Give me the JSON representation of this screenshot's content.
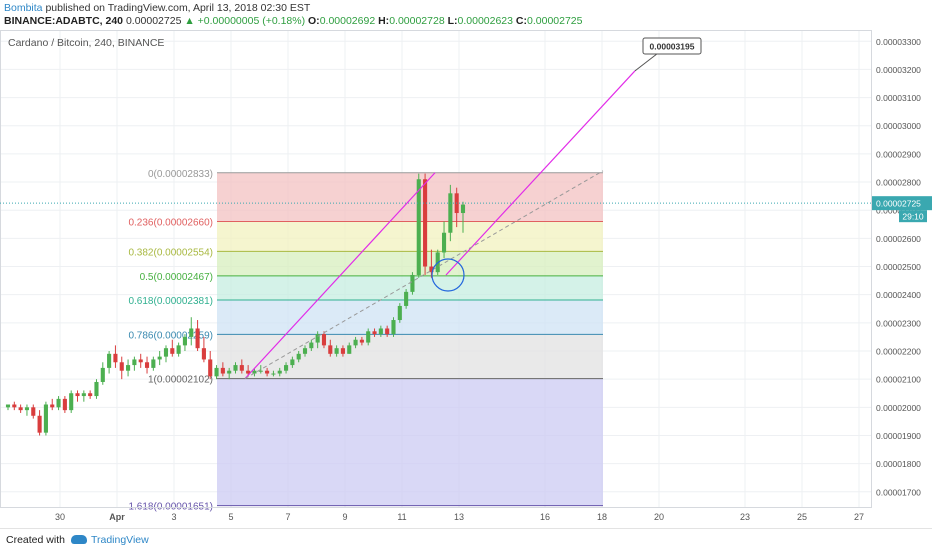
{
  "header": {
    "author": "Bombita",
    "published_text": "published on TradingView.com, April 13, 2018 02:30 EST",
    "symbol": "BINANCE:ADABTC, 240",
    "last": "0.00002725",
    "change_arrow": "▲",
    "change": "+0.00000005 (+0.18%)",
    "o_label": "O:",
    "o_value": "0.00002692",
    "h_label": "H:",
    "h_value": "0.00002728",
    "l_label": "L:",
    "l_value": "0.00002623",
    "c_label": "C:",
    "c_value": "0.00002725"
  },
  "footer": {
    "created_with": "Created with",
    "brand": "TradingView"
  },
  "colors": {
    "up": "#4caf50",
    "down": "#d93d3d",
    "trendline": "#e22ce8",
    "circle": "#2266dd",
    "price_axis_label": "#3aa8b0"
  },
  "chart_data": {
    "type": "candlestick",
    "title": "Cardano / Bitcoin, 240, BINANCE",
    "x_tick_labels": [
      "30",
      "Apr",
      "3",
      "5",
      "7",
      "9",
      "11",
      "13",
      "16",
      "18",
      "20",
      "23",
      "25",
      "27"
    ],
    "y_tick_labels": [
      "0.00003300",
      "0.00003200",
      "0.00003100",
      "0.00003000",
      "0.00002900",
      "0.00002800",
      "0.00002700",
      "0.00002600",
      "0.00002500",
      "0.00002400",
      "0.00002300",
      "0.00002200",
      "0.00002100",
      "0.00002000",
      "0.00001900",
      "0.00001800",
      "0.00001700"
    ],
    "y_ticks": [
      3.3e-05,
      3.2e-05,
      3.1e-05,
      3e-05,
      2.9e-05,
      2.8e-05,
      2.7e-05,
      2.6e-05,
      2.5e-05,
      2.4e-05,
      2.3e-05,
      2.2e-05,
      2.1e-05,
      2e-05,
      1.9e-05,
      1.8e-05,
      1.7e-05
    ],
    "ylim": [
      1.646e-05,
      3.34e-05
    ],
    "current_price": {
      "value": 2.725e-05,
      "label": "0.00002725",
      "countdown": "29:10"
    },
    "fibonacci": [
      {
        "label": "0(0.00002833)",
        "value": 2.833e-05,
        "color": "#999999",
        "fill": "#f3c2c2"
      },
      {
        "label": "0.236(0.00002660)",
        "value": 2.66e-05,
        "color": "#e06060",
        "fill": "#f1f1bf"
      },
      {
        "label": "0.382(0.00002554)",
        "value": 2.554e-05,
        "color": "#a8b840",
        "fill": "#d7efbd"
      },
      {
        "label": "0.5(0.00002467)",
        "value": 2.467e-05,
        "color": "#46b040",
        "fill": "#c5eee0"
      },
      {
        "label": "0.618(0.00002381)",
        "value": 2.381e-05,
        "color": "#30b090",
        "fill": "#cfe3f4"
      },
      {
        "label": "0.786(0.00002259)",
        "value": 2.259e-05,
        "color": "#3a8ab0",
        "fill": "#e2e2e2"
      },
      {
        "label": "1(0.00002102)",
        "value": 2.102e-05,
        "color": "#666666",
        "fill": "#cccbf3"
      },
      {
        "label": "1.618(0.00001651)",
        "value": 1.651e-05,
        "color": "#6655aa",
        "fill": null
      }
    ],
    "annotation": {
      "text": "0.00003195",
      "value": 3.195e-05
    },
    "candles": [
      [
        2e-05,
        2.01e-05,
        1.99e-05,
        2.01e-05
      ],
      [
        2.01e-05,
        2.02e-05,
        1.99e-05,
        2e-05
      ],
      [
        2e-05,
        2.01e-05,
        1.98e-05,
        1.99e-05
      ],
      [
        1.99e-05,
        2.01e-05,
        1.97e-05,
        2e-05
      ],
      [
        2e-05,
        2.01e-05,
        1.96e-05,
        1.97e-05
      ],
      [
        1.97e-05,
        1.99e-05,
        1.9e-05,
        1.91e-05
      ],
      [
        1.91e-05,
        2.02e-05,
        1.9e-05,
        2.01e-05
      ],
      [
        2.01e-05,
        2.03e-05,
        1.99e-05,
        2e-05
      ],
      [
        2e-05,
        2.04e-05,
        1.99e-05,
        2.03e-05
      ],
      [
        2.03e-05,
        2.04e-05,
        1.98e-05,
        1.99e-05
      ],
      [
        1.99e-05,
        2.06e-05,
        1.98e-05,
        2.05e-05
      ],
      [
        2.05e-05,
        2.06e-05,
        2.02e-05,
        2.04e-05
      ],
      [
        2.04e-05,
        2.06e-05,
        2.02e-05,
        2.05e-05
      ],
      [
        2.05e-05,
        2.06e-05,
        2.03e-05,
        2.04e-05
      ],
      [
        2.04e-05,
        2.1e-05,
        2.03e-05,
        2.09e-05
      ],
      [
        2.09e-05,
        2.16e-05,
        2.08e-05,
        2.14e-05
      ],
      [
        2.14e-05,
        2.2e-05,
        2.12e-05,
        2.19e-05
      ],
      [
        2.19e-05,
        2.22e-05,
        2.14e-05,
        2.16e-05
      ],
      [
        2.16e-05,
        2.18e-05,
        2.1e-05,
        2.13e-05
      ],
      [
        2.13e-05,
        2.17e-05,
        2.11e-05,
        2.15e-05
      ],
      [
        2.15e-05,
        2.18e-05,
        2.13e-05,
        2.17e-05
      ],
      [
        2.17e-05,
        2.19e-05,
        2.14e-05,
        2.16e-05
      ],
      [
        2.16e-05,
        2.18e-05,
        2.12e-05,
        2.14e-05
      ],
      [
        2.14e-05,
        2.18e-05,
        2.13e-05,
        2.17e-05
      ],
      [
        2.17e-05,
        2.2e-05,
        2.15e-05,
        2.18e-05
      ],
      [
        2.18e-05,
        2.22e-05,
        2.16e-05,
        2.21e-05
      ],
      [
        2.21e-05,
        2.24e-05,
        2.18e-05,
        2.19e-05
      ],
      [
        2.19e-05,
        2.23e-05,
        2.18e-05,
        2.22e-05
      ],
      [
        2.22e-05,
        2.26e-05,
        2.2e-05,
        2.25e-05
      ],
      [
        2.25e-05,
        2.32e-05,
        2.22e-05,
        2.28e-05
      ],
      [
        2.28e-05,
        2.31e-05,
        2.2e-05,
        2.21e-05
      ],
      [
        2.21e-05,
        2.25e-05,
        2.16e-05,
        2.17e-05
      ],
      [
        2.17e-05,
        2.2e-05,
        2.1e-05,
        2.11e-05
      ],
      [
        2.11e-05,
        2.15e-05,
        2.1e-05,
        2.14e-05
      ],
      [
        2.14e-05,
        2.16e-05,
        2.11e-05,
        2.12e-05
      ],
      [
        2.12e-05,
        2.14e-05,
        2.1e-05,
        2.13e-05
      ],
      [
        2.13e-05,
        2.16e-05,
        2.12e-05,
        2.15e-05
      ],
      [
        2.15e-05,
        2.17e-05,
        2.12e-05,
        2.13e-05
      ],
      [
        2.13e-05,
        2.15e-05,
        2.11e-05,
        2.12e-05
      ],
      [
        2.12e-05,
        2.14e-05,
        2.11e-05,
        2.13e-05
      ],
      [
        2.13e-05,
        2.15e-05,
        2.12e-05,
        2.13e-05
      ],
      [
        2.13e-05,
        2.14e-05,
        2.11e-05,
        2.12e-05
      ],
      [
        2.12e-05,
        2.13e-05,
        2.11e-05,
        2.12e-05
      ],
      [
        2.12e-05,
        2.14e-05,
        2.11e-05,
        2.13e-05
      ],
      [
        2.13e-05,
        2.16e-05,
        2.12e-05,
        2.15e-05
      ],
      [
        2.15e-05,
        2.18e-05,
        2.14e-05,
        2.17e-05
      ],
      [
        2.17e-05,
        2.2e-05,
        2.16e-05,
        2.19e-05
      ],
      [
        2.19e-05,
        2.22e-05,
        2.18e-05,
        2.21e-05
      ],
      [
        2.21e-05,
        2.24e-05,
        2.2e-05,
        2.23e-05
      ],
      [
        2.23e-05,
        2.27e-05,
        2.21e-05,
        2.26e-05
      ],
      [
        2.26e-05,
        2.27e-05,
        2.21e-05,
        2.22e-05
      ],
      [
        2.22e-05,
        2.24e-05,
        2.18e-05,
        2.19e-05
      ],
      [
        2.19e-05,
        2.22e-05,
        2.18e-05,
        2.21e-05
      ],
      [
        2.21e-05,
        2.22e-05,
        2.18e-05,
        2.19e-05
      ],
      [
        2.19e-05,
        2.23e-05,
        2.19e-05,
        2.22e-05
      ],
      [
        2.22e-05,
        2.25e-05,
        2.21e-05,
        2.24e-05
      ],
      [
        2.24e-05,
        2.25e-05,
        2.22e-05,
        2.23e-05
      ],
      [
        2.23e-05,
        2.28e-05,
        2.22e-05,
        2.27e-05
      ],
      [
        2.27e-05,
        2.28e-05,
        2.25e-05,
        2.26e-05
      ],
      [
        2.26e-05,
        2.29e-05,
        2.25e-05,
        2.28e-05
      ],
      [
        2.28e-05,
        2.29e-05,
        2.25e-05,
        2.26e-05
      ],
      [
        2.26e-05,
        2.32e-05,
        2.25e-05,
        2.31e-05
      ],
      [
        2.31e-05,
        2.37e-05,
        2.3e-05,
        2.36e-05
      ],
      [
        2.36e-05,
        2.42e-05,
        2.35e-05,
        2.41e-05
      ],
      [
        2.41e-05,
        2.48e-05,
        2.4e-05,
        2.47e-05
      ],
      [
        2.47e-05,
        2.83e-05,
        2.46e-05,
        2.81e-05
      ],
      [
        2.81e-05,
        2.83e-05,
        2.47e-05,
        2.5e-05
      ],
      [
        2.5e-05,
        2.56e-05,
        2.46e-05,
        2.48e-05
      ],
      [
        2.48e-05,
        2.56e-05,
        2.47e-05,
        2.55e-05
      ],
      [
        2.55e-05,
        2.66e-05,
        2.53e-05,
        2.62e-05
      ],
      [
        2.62e-05,
        2.79e-05,
        2.59e-05,
        2.76e-05
      ],
      [
        2.76e-05,
        2.78e-05,
        2.64e-05,
        2.69e-05
      ],
      [
        2.69e-05,
        2.73e-05,
        2.62e-05,
        2.72e-05
      ]
    ]
  }
}
